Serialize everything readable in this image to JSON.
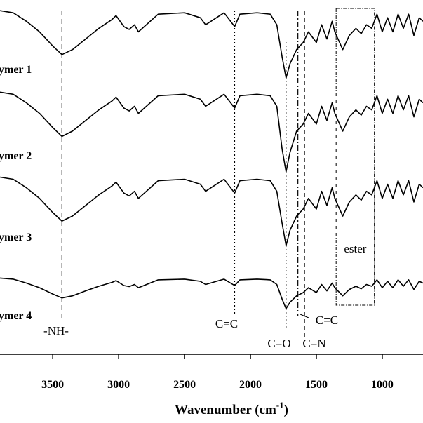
{
  "chart_data": {
    "type": "line",
    "xlabel_parts": [
      "Wavenumber (cm",
      "-1",
      ")"
    ],
    "xlim": [
      3900,
      691
    ],
    "xticks": [
      3500,
      3000,
      2500,
      2000,
      1500,
      1000
    ],
    "ylim": [
      0,
      100
    ],
    "x": [
      3900,
      3800,
      3700,
      3600,
      3500,
      3430,
      3350,
      3250,
      3150,
      3050,
      3020,
      2960,
      2920,
      2880,
      2850,
      2700,
      2500,
      2380,
      2340,
      2200,
      2120,
      2080,
      1950,
      1850,
      1800,
      1760,
      1730,
      1700,
      1650,
      1600,
      1560,
      1500,
      1460,
      1420,
      1380,
      1360,
      1300,
      1250,
      1200,
      1160,
      1120,
      1080,
      1040,
      1000,
      960,
      920,
      880,
      840,
      800,
      760,
      720,
      691
    ],
    "series": [
      {
        "name": "ymer 1",
        "color": "#000000",
        "values": [
          97,
          96.4,
          94,
          91,
          87,
          84.6,
          86,
          89,
          92,
          94.5,
          95.6,
          92.5,
          91.7,
          93,
          91,
          96,
          96.4,
          95,
          93,
          96.4,
          92.5,
          96,
          96.4,
          96,
          93,
          84,
          78,
          82,
          86,
          88,
          91,
          88,
          93,
          89,
          94,
          91,
          86,
          90,
          92,
          90.5,
          93,
          92,
          96,
          91,
          95,
          91,
          96,
          92,
          96,
          90,
          95,
          94
        ]
      },
      {
        "name": "ymer 2",
        "color": "#000000",
        "values": [
          74,
          73.4,
          71,
          68,
          64,
          61.5,
          63,
          66,
          69,
          71.5,
          72.6,
          69.5,
          68.7,
          70,
          68,
          73,
          73.4,
          72,
          70,
          73.4,
          69.5,
          73,
          73.4,
          73,
          70,
          58,
          51.5,
          57,
          63,
          65,
          68,
          65,
          70,
          66,
          71,
          68,
          63,
          67,
          69,
          67.5,
          70,
          69,
          73,
          68,
          72,
          68,
          73,
          69,
          73,
          67,
          72,
          71
        ]
      },
      {
        "name": "ymer 3",
        "color": "#000000",
        "values": [
          50,
          49.4,
          47,
          44,
          40,
          37.6,
          39,
          42,
          45,
          47.5,
          48.6,
          45.5,
          44.7,
          46,
          44,
          49,
          49.4,
          48,
          46,
          49.4,
          45.5,
          49,
          49.4,
          49,
          46,
          37,
          30.7,
          35,
          39,
          41,
          44,
          41,
          46,
          42,
          47,
          44,
          39,
          43,
          45,
          43.5,
          46,
          45,
          49,
          44,
          48,
          44,
          49,
          45,
          49,
          43,
          48,
          47
        ]
      },
      {
        "name": "ymer 4",
        "color": "#000000",
        "values": [
          21.5,
          21.2,
          20.1,
          18.8,
          17,
          15.9,
          16.5,
          17.9,
          19.2,
          20.3,
          20.8,
          19.4,
          19.1,
          19.7,
          18.8,
          21,
          21.2,
          20.6,
          19.7,
          21.2,
          19.4,
          21,
          21.2,
          21,
          19.7,
          15.6,
          12.9,
          14.7,
          16.5,
          17.4,
          18.8,
          17.4,
          19.7,
          17.9,
          20.1,
          18.8,
          16.5,
          18.3,
          19.2,
          18.5,
          19.7,
          19.2,
          21,
          18.8,
          20.6,
          18.8,
          21,
          19.2,
          21,
          18.3,
          20.6,
          20.1
        ]
      }
    ],
    "markers": [
      {
        "label": "-NH-",
        "x": 3430
      },
      {
        "label": "C=C",
        "x": 2120
      },
      {
        "label": "C=O",
        "x": 1730
      },
      {
        "label": "C=C",
        "x": 1640
      },
      {
        "label": "C=N",
        "x": 1590
      }
    ],
    "box": {
      "label": "ester",
      "x": [
        1350,
        1060
      ]
    }
  }
}
